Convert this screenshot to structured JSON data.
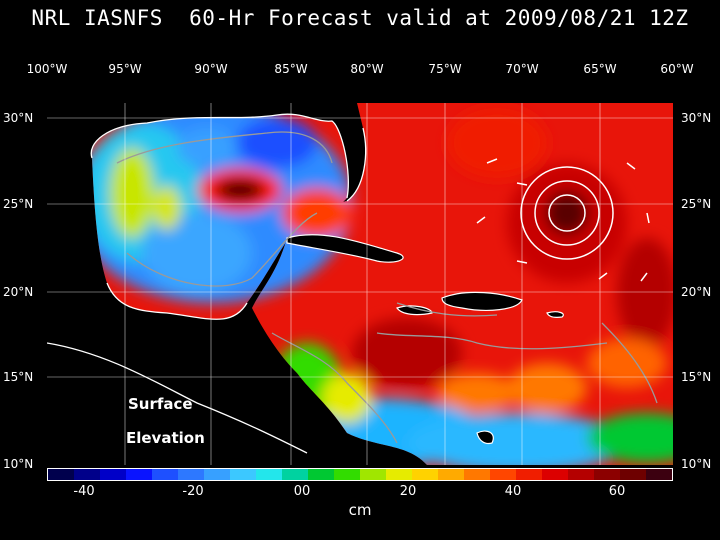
{
  "title": "NRL IASNFS  60-Hr Forecast valid at 2009/08/21 12Z",
  "lon_labels": [
    "100°W",
    "95°W",
    "90°W",
    "85°W",
    "80°W",
    "75°W",
    "70°W",
    "65°W",
    "60°W"
  ],
  "lat_labels": [
    "30°N",
    "25°N",
    "20°N",
    "15°N",
    "10°N"
  ],
  "overlay": {
    "line1": "Surface",
    "line2": "Elevation"
  },
  "colorbar": {
    "colors": [
      "#00004d",
      "#00008a",
      "#0000c8",
      "#0a14ff",
      "#1e50ff",
      "#2d78ff",
      "#37a0ff",
      "#3cc8ff",
      "#23e6eb",
      "#00d2a0",
      "#00c832",
      "#32dc00",
      "#a0e600",
      "#e6eb00",
      "#ffd200",
      "#ffaa00",
      "#ff7800",
      "#ff4600",
      "#f01e00",
      "#dc0000",
      "#b40000",
      "#8c0000",
      "#6e0000",
      "#3c0010"
    ],
    "tick_labels": [
      "-40",
      "-20",
      "00",
      "20",
      "40",
      "60"
    ],
    "unit": "cm"
  }
}
